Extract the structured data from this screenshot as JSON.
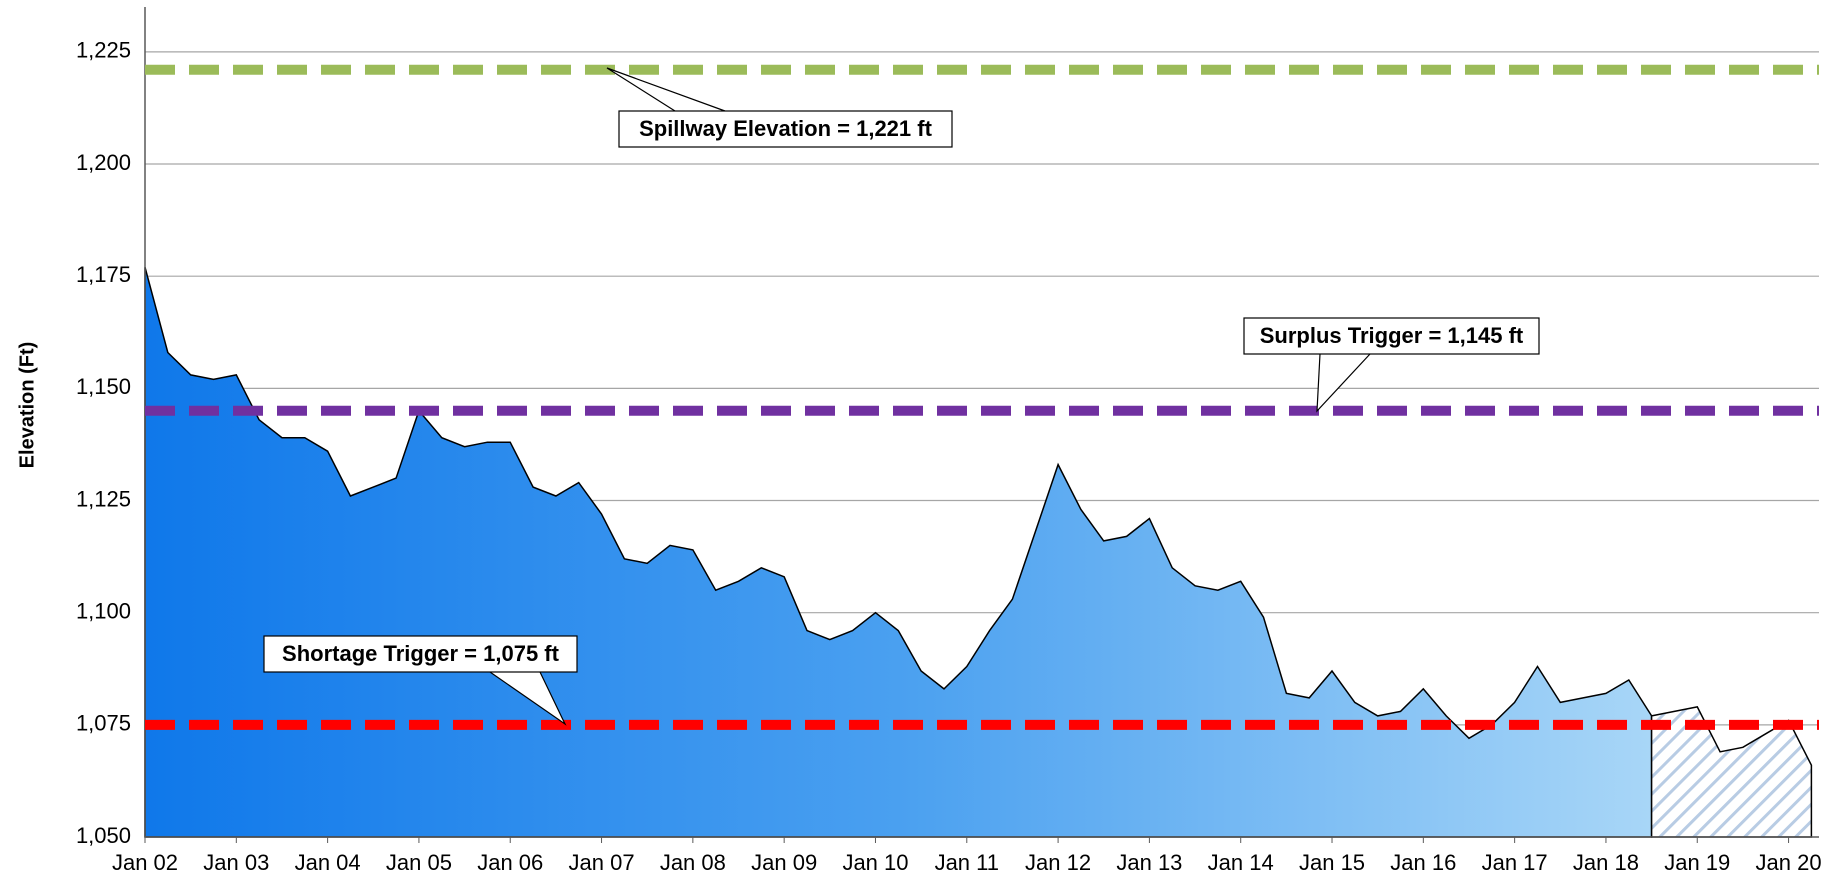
{
  "chart_data": {
    "type": "area",
    "y_label": "Elevation (Ft)",
    "ylim": [
      1050,
      1235
    ],
    "yticks": [
      {
        "value": 1050,
        "label": "1,050"
      },
      {
        "value": 1075,
        "label": "1,075"
      },
      {
        "value": 1100,
        "label": "1,100"
      },
      {
        "value": 1125,
        "label": "1,125"
      },
      {
        "value": 1150,
        "label": "1,150"
      },
      {
        "value": 1175,
        "label": "1,175"
      },
      {
        "value": 1200,
        "label": "1,200"
      },
      {
        "value": 1225,
        "label": "1,225"
      }
    ],
    "grid": true,
    "xlim": [
      "2002-01",
      "2020-05"
    ],
    "xticks": [
      {
        "value": "2002-01",
        "label": "Jan 02"
      },
      {
        "value": "2003-01",
        "label": "Jan 03"
      },
      {
        "value": "2004-01",
        "label": "Jan 04"
      },
      {
        "value": "2005-01",
        "label": "Jan 05"
      },
      {
        "value": "2006-01",
        "label": "Jan 06"
      },
      {
        "value": "2007-01",
        "label": "Jan 07"
      },
      {
        "value": "2008-01",
        "label": "Jan 08"
      },
      {
        "value": "2009-01",
        "label": "Jan 09"
      },
      {
        "value": "2010-01",
        "label": "Jan 10"
      },
      {
        "value": "2011-01",
        "label": "Jan 11"
      },
      {
        "value": "2012-01",
        "label": "Jan 12"
      },
      {
        "value": "2013-01",
        "label": "Jan 13"
      },
      {
        "value": "2014-01",
        "label": "Jan 14"
      },
      {
        "value": "2015-01",
        "label": "Jan 15"
      },
      {
        "value": "2016-01",
        "label": "Jan 16"
      },
      {
        "value": "2017-01",
        "label": "Jan 17"
      },
      {
        "value": "2018-01",
        "label": "Jan 18"
      },
      {
        "value": "2019-01",
        "label": "Jan 19"
      },
      {
        "value": "2020-01",
        "label": "Jan 20"
      }
    ],
    "x": [
      "2002-01",
      "2002-04",
      "2002-07",
      "2002-10",
      "2003-01",
      "2003-04",
      "2003-07",
      "2003-10",
      "2004-01",
      "2004-04",
      "2004-07",
      "2004-10",
      "2005-01",
      "2005-04",
      "2005-07",
      "2005-10",
      "2006-01",
      "2006-04",
      "2006-07",
      "2006-10",
      "2007-01",
      "2007-04",
      "2007-07",
      "2007-10",
      "2008-01",
      "2008-04",
      "2008-07",
      "2008-10",
      "2009-01",
      "2009-04",
      "2009-07",
      "2009-10",
      "2010-01",
      "2010-04",
      "2010-07",
      "2010-10",
      "2011-01",
      "2011-04",
      "2011-07",
      "2011-10",
      "2012-01",
      "2012-04",
      "2012-07",
      "2012-10",
      "2013-01",
      "2013-04",
      "2013-07",
      "2013-10",
      "2014-01",
      "2014-04",
      "2014-07",
      "2014-10",
      "2015-01",
      "2015-04",
      "2015-07",
      "2015-10",
      "2016-01",
      "2016-04",
      "2016-07",
      "2016-10",
      "2017-01",
      "2017-04",
      "2017-07",
      "2017-10",
      "2018-01",
      "2018-04",
      "2018-07",
      "2018-10",
      "2019-01",
      "2019-04",
      "2019-07",
      "2019-10",
      "2020-01",
      "2020-04"
    ],
    "series": [
      {
        "color": "#1a7fe8",
        "fill": "gradient",
        "values": [
          1177,
          1158,
          1153,
          1152,
          1153,
          1143,
          1139,
          1139,
          1136,
          1126,
          1128,
          1130,
          1145,
          1139,
          1137,
          1138,
          1138,
          1128,
          1126,
          1129,
          1122,
          1112,
          1111,
          1115,
          1114,
          1105,
          1107,
          1110,
          1108,
          1096,
          1094,
          1096,
          1100,
          1096,
          1087,
          1083,
          1088,
          1096,
          1103,
          1118,
          1133,
          1123,
          1116,
          1117,
          1121,
          1110,
          1106,
          1105,
          1107,
          1099,
          1082,
          1081,
          1087,
          1080,
          1077,
          1078,
          1083,
          1077,
          1072,
          1075,
          1080,
          1088,
          1080,
          1081,
          1082,
          1085,
          1077,
          null,
          null,
          null,
          null,
          null,
          null,
          null
        ]
      },
      {
        "color": "#b8cce4",
        "fill": "hatch",
        "values": [
          null,
          null,
          null,
          null,
          null,
          null,
          null,
          null,
          null,
          null,
          null,
          null,
          null,
          null,
          null,
          null,
          null,
          null,
          null,
          null,
          null,
          null,
          null,
          null,
          null,
          null,
          null,
          null,
          null,
          null,
          null,
          null,
          null,
          null,
          null,
          null,
          null,
          null,
          null,
          null,
          null,
          null,
          null,
          null,
          null,
          null,
          null,
          null,
          null,
          null,
          null,
          null,
          null,
          null,
          null,
          null,
          null,
          null,
          null,
          null,
          null,
          null,
          null,
          null,
          null,
          null,
          1077,
          1078,
          1079,
          1069,
          1070,
          1073,
          1076,
          1066
        ]
      }
    ],
    "reference_lines": [
      {
        "value": 1221,
        "label": "Spillway Elevation = 1,221 ft",
        "color": "#9bbb59",
        "text_color": "#4f6228"
      },
      {
        "value": 1145,
        "label": "Surplus Trigger = 1,145 ft",
        "color": "#7030a0",
        "text_color": "#7030a0"
      },
      {
        "value": 1075,
        "label": "Shortage Trigger = 1,075 ft",
        "color": "#ff0000",
        "text_color": "#ff0000"
      }
    ]
  }
}
